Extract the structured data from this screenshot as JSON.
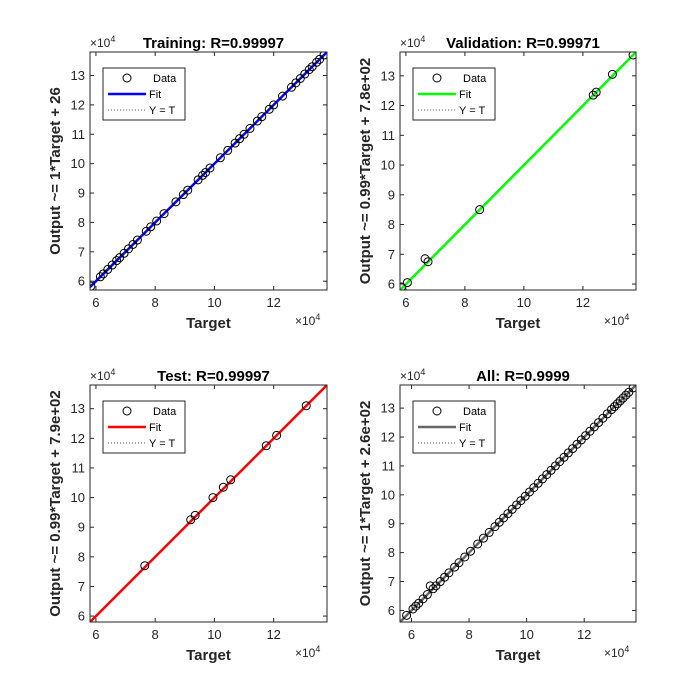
{
  "figure": {
    "multiplier": "×10",
    "multiplier_exp": "4",
    "legend_labels": [
      "Data",
      "Fit",
      "Y = T"
    ]
  },
  "chart_data": [
    {
      "type": "scatter",
      "title": "Training: R=0.99997",
      "xlabel": "Target",
      "ylabel": "Output ~= 1*Target + 26",
      "xlim": [
        5.8,
        13.8
      ],
      "ylim": [
        5.7,
        13.8
      ],
      "xticks": [
        6,
        8,
        10,
        12
      ],
      "yticks": [
        6,
        7,
        8,
        9,
        10,
        11,
        12,
        13
      ],
      "fit_color": "#0000ff",
      "fit": {
        "slope": 1.0,
        "intercept": 0
      },
      "x": [
        5.83,
        6.15,
        6.25,
        6.4,
        6.55,
        6.7,
        6.8,
        6.95,
        7.1,
        7.25,
        7.4,
        7.7,
        7.85,
        8.05,
        8.3,
        8.7,
        8.95,
        9.1,
        9.45,
        9.6,
        9.7,
        9.85,
        10.2,
        10.45,
        10.7,
        10.85,
        11.0,
        11.2,
        11.45,
        11.6,
        11.85,
        12.0,
        12.3,
        12.6,
        12.75,
        12.9,
        13.05,
        13.2,
        13.3,
        13.45,
        13.55,
        13.7
      ],
      "y": [
        5.83,
        6.15,
        6.25,
        6.4,
        6.55,
        6.7,
        6.8,
        6.95,
        7.1,
        7.25,
        7.4,
        7.7,
        7.85,
        8.05,
        8.3,
        8.7,
        8.95,
        9.1,
        9.45,
        9.6,
        9.7,
        9.85,
        10.2,
        10.45,
        10.7,
        10.85,
        11.0,
        11.2,
        11.45,
        11.6,
        11.85,
        12.0,
        12.3,
        12.6,
        12.75,
        12.9,
        13.05,
        13.2,
        13.3,
        13.45,
        13.55,
        13.7
      ]
    },
    {
      "type": "scatter",
      "title": "Validation: R=0.99971",
      "xlabel": "Target",
      "ylabel": "Output ~= 0.99*Target + 7.8e+02",
      "xlim": [
        5.8,
        13.8
      ],
      "ylim": [
        5.8,
        13.8
      ],
      "xticks": [
        6,
        8,
        10,
        12
      ],
      "yticks": [
        6,
        7,
        8,
        9,
        10,
        11,
        12,
        13
      ],
      "fit_color": "#00ff00",
      "fit": {
        "slope": 1.0,
        "intercept": 0
      },
      "x": [
        5.85,
        6.05,
        6.65,
        6.75,
        8.5,
        12.35,
        12.45,
        13.0,
        13.7
      ],
      "y": [
        5.9,
        6.05,
        6.85,
        6.75,
        8.5,
        12.35,
        12.45,
        13.05,
        13.7
      ]
    },
    {
      "type": "scatter",
      "title": "Test: R=0.99997",
      "xlabel": "Target",
      "ylabel": "Output ~= 0.99*Target + 7.9e+02",
      "xlim": [
        5.8,
        13.8
      ],
      "ylim": [
        5.8,
        13.8
      ],
      "xticks": [
        6,
        8,
        10,
        12
      ],
      "yticks": [
        6,
        7,
        8,
        9,
        10,
        11,
        12,
        13
      ],
      "fit_color": "#ff0000",
      "fit": {
        "slope": 1.0,
        "intercept": 0
      },
      "x": [
        7.65,
        9.2,
        9.35,
        9.95,
        10.3,
        10.55,
        11.75,
        12.1,
        13.1
      ],
      "y": [
        7.7,
        9.25,
        9.4,
        10.0,
        10.35,
        10.6,
        11.75,
        12.1,
        13.1
      ]
    },
    {
      "type": "scatter",
      "title": "All: R=0.9999",
      "xlabel": "Target",
      "ylabel": "Output ~= 1*Target + 2.6e+02",
      "xlim": [
        5.6,
        13.8
      ],
      "ylim": [
        5.6,
        13.8
      ],
      "xticks": [
        6,
        8,
        10,
        12
      ],
      "yticks": [
        6,
        7,
        8,
        9,
        10,
        11,
        12,
        13
      ],
      "fit_color": "#666666",
      "fit": {
        "slope": 1.0,
        "intercept": 0
      },
      "x": [
        5.83,
        6.05,
        6.15,
        6.25,
        6.4,
        6.55,
        6.65,
        6.75,
        6.85,
        7.0,
        7.15,
        7.3,
        7.5,
        7.65,
        7.85,
        8.05,
        8.3,
        8.5,
        8.7,
        8.9,
        9.05,
        9.2,
        9.35,
        9.5,
        9.65,
        9.8,
        9.95,
        10.1,
        10.25,
        10.4,
        10.55,
        10.7,
        10.85,
        11.0,
        11.15,
        11.3,
        11.45,
        11.6,
        11.75,
        11.9,
        12.05,
        12.2,
        12.35,
        12.5,
        12.65,
        12.8,
        12.95,
        13.05,
        13.15,
        13.25,
        13.35,
        13.45,
        13.55,
        13.7
      ],
      "y": [
        5.83,
        6.05,
        6.15,
        6.25,
        6.4,
        6.55,
        6.85,
        6.75,
        6.85,
        7.0,
        7.15,
        7.3,
        7.5,
        7.65,
        7.85,
        8.05,
        8.3,
        8.5,
        8.7,
        8.9,
        9.05,
        9.2,
        9.35,
        9.5,
        9.65,
        9.8,
        9.95,
        10.1,
        10.25,
        10.4,
        10.55,
        10.7,
        10.85,
        11.0,
        11.15,
        11.3,
        11.45,
        11.6,
        11.75,
        11.9,
        12.05,
        12.2,
        12.35,
        12.5,
        12.65,
        12.8,
        12.95,
        13.05,
        13.15,
        13.25,
        13.35,
        13.45,
        13.55,
        13.7
      ]
    }
  ]
}
